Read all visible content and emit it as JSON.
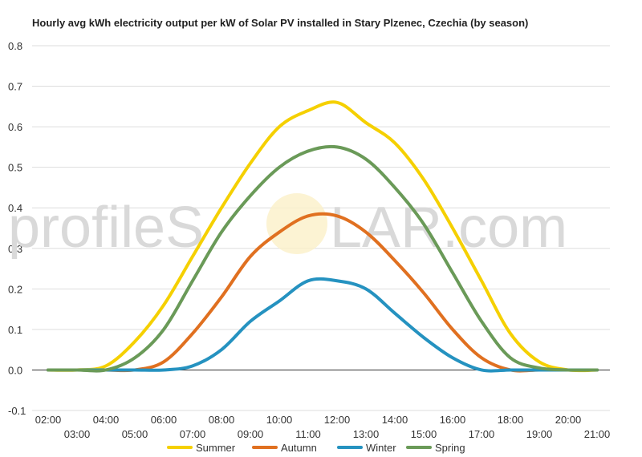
{
  "watermark": {
    "text_left": "profileS",
    "text_right": "LAR.com"
  },
  "chart_data": {
    "type": "line",
    "title": "Hourly avg kWh electricity output per kW of Solar PV installed in Stary Plzenec, Czechia (by season)",
    "xlabel": "",
    "ylabel": "",
    "ylim": [
      -0.1,
      0.8
    ],
    "y_ticks": [
      "-0.1",
      "0.0",
      "0.1",
      "0.2",
      "0.3",
      "0.4",
      "0.5",
      "0.6",
      "0.7",
      "0.8"
    ],
    "x_ticks_row1": [
      "02:00",
      "04:00",
      "06:00",
      "08:00",
      "10:00",
      "12:00",
      "14:00",
      "16:00",
      "18:00",
      "20:00"
    ],
    "x_ticks_row2": [
      "03:00",
      "05:00",
      "07:00",
      "09:00",
      "11:00",
      "13:00",
      "15:00",
      "17:00",
      "19:00",
      "21:00"
    ],
    "x": [
      "02:00",
      "03:00",
      "04:00",
      "05:00",
      "06:00",
      "07:00",
      "08:00",
      "09:00",
      "10:00",
      "11:00",
      "12:00",
      "13:00",
      "14:00",
      "15:00",
      "16:00",
      "17:00",
      "18:00",
      "19:00",
      "20:00",
      "21:00"
    ],
    "grid": true,
    "legend_position": "bottom",
    "series": [
      {
        "name": "Summer",
        "color": "#f5d000",
        "values": [
          0,
          0,
          0.01,
          0.07,
          0.16,
          0.28,
          0.4,
          0.51,
          0.6,
          0.64,
          0.66,
          0.61,
          0.56,
          0.47,
          0.35,
          0.22,
          0.09,
          0.02,
          0,
          0
        ]
      },
      {
        "name": "Autumn",
        "color": "#e07020",
        "values": [
          0,
          0,
          0,
          0,
          0.02,
          0.09,
          0.18,
          0.28,
          0.34,
          0.38,
          0.38,
          0.34,
          0.27,
          0.19,
          0.1,
          0.03,
          0,
          0,
          0,
          0
        ]
      },
      {
        "name": "Winter",
        "color": "#2592c0",
        "values": [
          0,
          0,
          0,
          0,
          0,
          0.01,
          0.05,
          0.12,
          0.17,
          0.22,
          0.22,
          0.2,
          0.14,
          0.08,
          0.03,
          0,
          0,
          0,
          0,
          0
        ]
      },
      {
        "name": "Spring",
        "color": "#6a9a58",
        "values": [
          0,
          0,
          0,
          0.03,
          0.1,
          0.22,
          0.34,
          0.43,
          0.5,
          0.54,
          0.55,
          0.52,
          0.45,
          0.36,
          0.24,
          0.12,
          0.03,
          0.005,
          0,
          0
        ]
      }
    ]
  }
}
